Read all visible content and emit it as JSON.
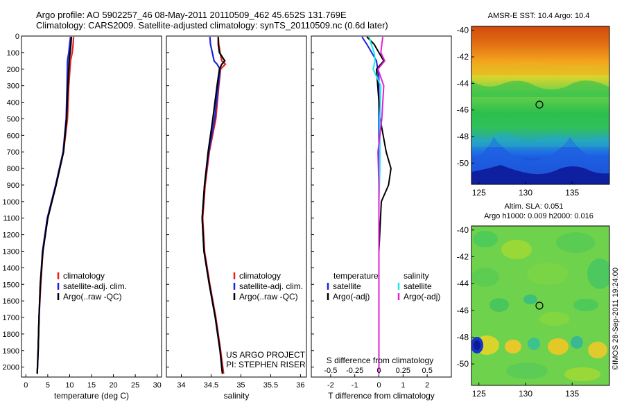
{
  "header": {
    "line1": "Argo profile: AO 5902257_46 08-May-2011 20110509_462 45.652S 131.769E",
    "line2": "Climatology: CARS2009. Satellite-adjusted climatology: synTS_20110509.nc (0.6d later)"
  },
  "colors": {
    "climatology": "#e8201c",
    "satellite": "#1a24e0",
    "argo": "#000000",
    "satellite_s": "#18e8f0",
    "argo_s": "#e020d8"
  },
  "chart_data": [
    {
      "type": "line",
      "id": "temperature-profile",
      "xlabel": "temperature (deg C)",
      "ylabel": "",
      "xlim": [
        -1,
        31
      ],
      "ylim": [
        2060,
        0
      ],
      "xticks": [
        "0",
        "5",
        "10",
        "15",
        "20",
        "25",
        "30"
      ],
      "yticks": [
        "0",
        "100",
        "200",
        "300",
        "400",
        "500",
        "600",
        "700",
        "800",
        "900",
        "1000",
        "1100",
        "1200",
        "1300",
        "1400",
        "1500",
        "1600",
        "1700",
        "1800",
        "1900",
        "2000"
      ],
      "legend": [
        "climatology",
        "satellite-adj. clim.",
        "Argo(..raw -QC)"
      ],
      "series": [
        {
          "name": "climatology",
          "depth": [
            5,
            50,
            100,
            150,
            300,
            500,
            700,
            900,
            1100,
            1300,
            1500,
            1700,
            1900,
            2040
          ],
          "values": [
            10.9,
            10.8,
            10.6,
            10.2,
            9.8,
            9.5,
            8.6,
            6.9,
            5.0,
            3.9,
            3.4,
            3.0,
            2.8,
            2.6
          ]
        },
        {
          "name": "satellite-adj. clim.",
          "depth": [
            5,
            50,
            100,
            150,
            300,
            500,
            700,
            900,
            1100,
            1300,
            1500,
            1700,
            1900,
            2040
          ],
          "values": [
            10.2,
            10.0,
            9.8,
            9.5,
            9.4,
            9.2,
            8.5,
            6.8,
            4.9,
            3.8,
            3.3,
            3.0,
            2.8,
            2.6
          ]
        },
        {
          "name": "Argo(..raw -QC)",
          "depth": [
            5,
            50,
            100,
            150,
            300,
            500,
            700,
            900,
            1100,
            1300,
            1500,
            1700,
            1900,
            2040
          ],
          "values": [
            10.4,
            10.3,
            10.1,
            9.9,
            9.6,
            9.3,
            8.6,
            6.9,
            5.0,
            3.9,
            3.3,
            3.0,
            2.8,
            2.6
          ]
        }
      ]
    },
    {
      "type": "line",
      "id": "salinity-profile",
      "xlabel": "salinity",
      "xlim": [
        33.75,
        36.1
      ],
      "ylim": [
        2060,
        0
      ],
      "xticks": [
        "34",
        "34.5",
        "35",
        "35.5",
        "36"
      ],
      "legend": [
        "climatology",
        "satellite-adj. clim.",
        "Argo(..raw -QC)"
      ],
      "annotation": [
        "US ARGO PROJECT",
        "PI: STEPHEN RISER"
      ],
      "series": [
        {
          "name": "climatology",
          "depth": [
            5,
            50,
            100,
            150,
            170,
            200,
            300,
            500,
            700,
            900,
            1100,
            1300,
            1500,
            1700,
            1900,
            2040
          ],
          "values": [
            34.62,
            34.63,
            34.65,
            34.68,
            34.74,
            34.66,
            34.63,
            34.58,
            34.47,
            34.4,
            34.36,
            34.39,
            34.48,
            34.58,
            34.66,
            34.71
          ]
        },
        {
          "name": "satellite-adj. clim.",
          "depth": [
            5,
            50,
            100,
            150,
            170,
            200,
            300,
            500,
            700,
            900,
            1100,
            1300,
            1500,
            1700,
            1900,
            2040
          ],
          "values": [
            34.48,
            34.49,
            34.52,
            34.55,
            34.6,
            34.65,
            34.62,
            34.56,
            34.46,
            34.39,
            34.35,
            34.38,
            34.47,
            34.57,
            34.65,
            34.69
          ]
        },
        {
          "name": "Argo(..raw -QC)",
          "depth": [
            5,
            50,
            100,
            150,
            170,
            200,
            300,
            500,
            700,
            900,
            1100,
            1300,
            1500,
            1700,
            1900,
            2040
          ],
          "values": [
            34.62,
            34.62,
            34.64,
            34.73,
            34.68,
            34.64,
            34.6,
            34.53,
            34.45,
            34.39,
            34.35,
            34.38,
            34.47,
            34.57,
            34.65,
            34.69
          ]
        }
      ]
    },
    {
      "type": "line",
      "id": "difference-profile",
      "xlabel": "T difference from climatology",
      "xlabel_top": "S difference from climatology",
      "xlim": [
        -2.8,
        3.0
      ],
      "ylim": [
        2060,
        0
      ],
      "xticks": [
        "-2",
        "-1",
        "0",
        "1",
        "2"
      ],
      "xticks_s": [
        "-0.5",
        "-0.25",
        "0",
        "0.25",
        "0.5"
      ],
      "legend_titles": [
        "temperature",
        "salinity"
      ],
      "legend": [
        "satellite",
        "Argo(-adj)",
        "satellite",
        "Argo(-adj)"
      ],
      "series": [
        {
          "name": "temperature satellite",
          "depth": [
            5,
            50,
            100,
            150,
            250,
            400,
            700,
            1000,
            1300,
            1600,
            2040
          ],
          "values": [
            -0.7,
            -0.5,
            -0.3,
            -0.1,
            0,
            0,
            0,
            0,
            0,
            0,
            0
          ]
        },
        {
          "name": "temperature Argo(-adj)",
          "depth": [
            5,
            50,
            100,
            150,
            200,
            300,
            500,
            700,
            800,
            900,
            1000,
            1300,
            1600,
            2040
          ],
          "values": [
            -0.5,
            -0.2,
            0,
            0.2,
            -0.1,
            -0.05,
            0.05,
            0.3,
            0.5,
            0.4,
            0.1,
            0,
            0,
            0
          ]
        },
        {
          "name": "salinity satellite",
          "depth": [
            5,
            50,
            100,
            150,
            200,
            300,
            500,
            800,
            1000,
            1300,
            1600,
            2040
          ],
          "values": [
            -0.1,
            -0.08,
            -0.05,
            -0.04,
            -0.06,
            0.02,
            0.01,
            0.01,
            0.0,
            0.0,
            0.0,
            0.0
          ]
        },
        {
          "name": "salinity Argo(-adj)",
          "depth": [
            5,
            50,
            100,
            150,
            200,
            300,
            500,
            700,
            900,
            1200,
            1500,
            2040
          ],
          "values": [
            0.04,
            0.03,
            0.02,
            0.06,
            -0.01,
            0.05,
            0.03,
            -0.01,
            0.0,
            0.0,
            0.0,
            0.0
          ]
        }
      ]
    },
    {
      "type": "heatmap",
      "id": "sst-map",
      "title": "AMSR-E SST: 10.4  Argo: 10.4",
      "xticks": [
        "125",
        "130",
        "135"
      ],
      "yticks": [
        "-40",
        "-42",
        "-44",
        "-46",
        "-48",
        "-50"
      ],
      "xlim": [
        124.2,
        139
      ],
      "ylim": [
        -51.6,
        -39.7
      ],
      "marker": {
        "lon": 131.769,
        "lat": -45.652
      }
    },
    {
      "type": "heatmap",
      "id": "sla-map",
      "title": "Altim. SLA: 0.051",
      "subtitle": "Argo h1000: 0.009 h2000: 0.016",
      "xticks": [
        "125",
        "130",
        "135"
      ],
      "yticks": [
        "-40",
        "-42",
        "-44",
        "-46",
        "-48",
        "-50"
      ],
      "xlim": [
        124.2,
        139
      ],
      "ylim": [
        -51.6,
        -39.7
      ],
      "marker": {
        "lon": 131.769,
        "lat": -45.652
      }
    }
  ],
  "footer": {
    "credit": "©IMOS 28-Sep-2011 19:24:00"
  }
}
